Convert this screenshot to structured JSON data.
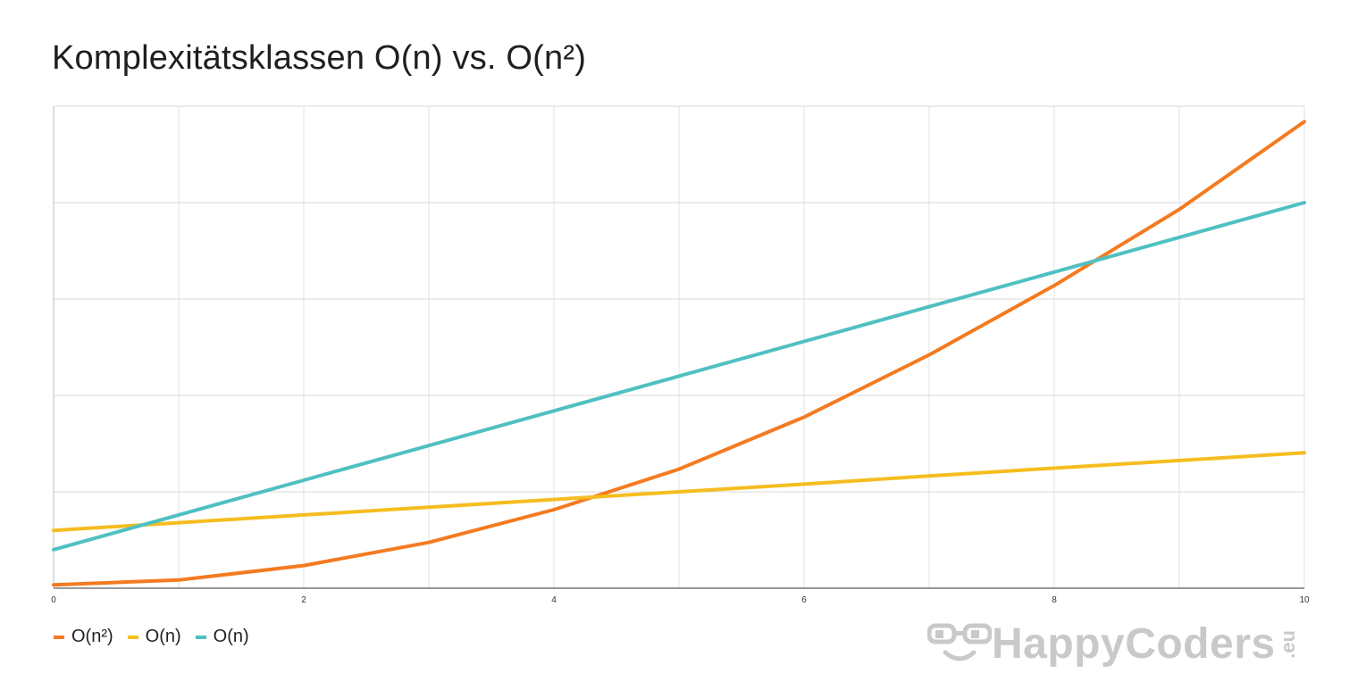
{
  "chart_data": {
    "type": "line",
    "title": "Komplexitätsklassen O(n) vs. O(n²)",
    "x": [
      0,
      1,
      2,
      3,
      4,
      5,
      6,
      7,
      8,
      9,
      10
    ],
    "xlim": [
      0,
      10
    ],
    "ylim": [
      0,
      100
    ],
    "x_ticks": [
      0,
      2,
      4,
      6,
      8,
      10
    ],
    "y_gridlines": [
      0,
      20,
      40,
      60,
      80,
      100
    ],
    "y_tick_labels_shown": false,
    "grid": true,
    "legend_position": "bottom-left",
    "series": [
      {
        "name": "O(n²)",
        "color": "#f47a20",
        "values": [
          0.7,
          1.7,
          4.7,
          9.5,
          16.3,
          24.7,
          35.5,
          48.4,
          62.8,
          78.6,
          96.8
        ]
      },
      {
        "name": "O(n)",
        "color": "#f5bd1f",
        "values": [
          12.0,
          13.6,
          15.2,
          16.8,
          18.4,
          20.0,
          21.6,
          23.3,
          24.9,
          26.5,
          28.1
        ]
      },
      {
        "name": "O(n)",
        "color": "#4fc0c2",
        "values": [
          8.0,
          15.2,
          22.4,
          29.6,
          36.8,
          44.0,
          51.2,
          58.4,
          65.6,
          72.8,
          80.0
        ]
      }
    ]
  },
  "watermark": {
    "text": "HappyCoders",
    "tld": ".eu",
    "icon": "glasses-smiley-icon",
    "color": "#c9c9c9"
  }
}
